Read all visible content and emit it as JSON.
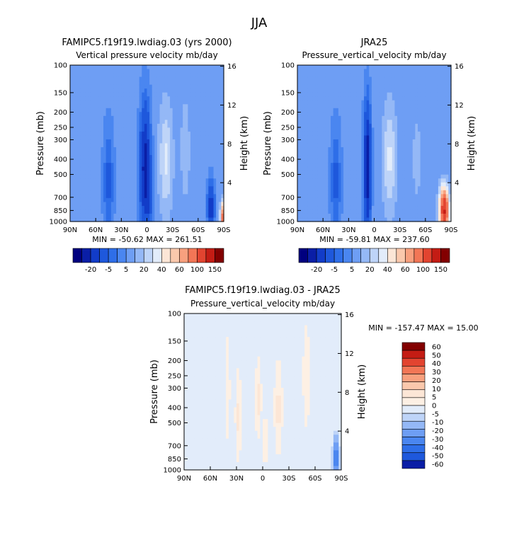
{
  "page_title": "JJA",
  "chart_data": [
    {
      "type": "heatmap",
      "id": "model",
      "title": "FAMIPC5.f19f19.lwdiag.03 (yrs 2000)",
      "subtitle": "Vertical pressure velocity mb/day",
      "xlabel": "",
      "ylabel": "Pressure (mb)",
      "ylabel_right": "Height (km)",
      "x_ticks": [
        "90N",
        "60N",
        "30N",
        "0",
        "30S",
        "60S",
        "90S"
      ],
      "y_ticks": [
        "100",
        "150",
        "200",
        "250",
        "300",
        "400",
        "500",
        "700",
        "850",
        "1000"
      ],
      "y_ticks_right": [
        "16",
        "12",
        "8",
        "4"
      ],
      "ylim": [
        1000,
        100
      ],
      "y_scale": "log",
      "stats": {
        "min_label": "MIN = -50.62",
        "max_label": "MAX = 261.51",
        "min": -50.62,
        "max": 261.51
      },
      "colorbar": {
        "orientation": "horizontal",
        "labels": [
          "-20",
          "-5",
          "5",
          "20",
          "40",
          "60",
          "100",
          "150"
        ],
        "colors": [
          "#00007f",
          "#0a1ea6",
          "#123cc8",
          "#1e58dc",
          "#2e6ee8",
          "#4a86f0",
          "#6e9ef4",
          "#94b8f6",
          "#bed4f8",
          "#e2ecfa",
          "#fce6d6",
          "#fac8ac",
          "#f8a07e",
          "#f27656",
          "#e24430",
          "#c41c14",
          "#820000"
        ]
      },
      "fields": {
        "base_value": -8,
        "features": [
          {
            "lat": 2,
            "p": 450,
            "wlat": 6,
            "wp": 0.9,
            "value": -38
          },
          {
            "lat": -3,
            "p": 700,
            "wlat": 4,
            "wp": 0.4,
            "value": -10
          },
          {
            "lat": -22,
            "p": 400,
            "wlat": 8,
            "wp": 0.8,
            "value": 14
          },
          {
            "lat": -45,
            "p": 350,
            "wlat": 5,
            "wp": 0.7,
            "value": 8
          },
          {
            "lat": 45,
            "p": 550,
            "wlat": 6,
            "wp": 0.8,
            "value": -14
          },
          {
            "lat": -75,
            "p": 800,
            "wlat": 4,
            "wp": 0.35,
            "value": -30
          },
          {
            "lat": -88,
            "p": 950,
            "wlat": 2,
            "wp": 0.2,
            "value": 60
          }
        ]
      }
    },
    {
      "type": "heatmap",
      "id": "obs",
      "title": "JRA25",
      "subtitle": "Pressure_vertical_velocity mb/day",
      "xlabel": "",
      "ylabel": "Pressure (mb)",
      "ylabel_right": "Height (km)",
      "x_ticks": [
        "90N",
        "60N",
        "30N",
        "0",
        "30S",
        "60S",
        "90S"
      ],
      "y_ticks": [
        "100",
        "150",
        "200",
        "250",
        "300",
        "400",
        "500",
        "700",
        "850",
        "1000"
      ],
      "y_ticks_right": [
        "16",
        "12",
        "8",
        "4"
      ],
      "ylim": [
        1000,
        100
      ],
      "y_scale": "log",
      "stats": {
        "min_label": "MIN = -59.81",
        "max_label": "MAX = 237.60",
        "min": -59.81,
        "max": 237.6
      },
      "colorbar": {
        "orientation": "horizontal",
        "labels": [
          "-20",
          "-5",
          "5",
          "20",
          "40",
          "60",
          "100",
          "150"
        ],
        "colors": [
          "#00007f",
          "#0a1ea6",
          "#123cc8",
          "#1e58dc",
          "#2e6ee8",
          "#4a86f0",
          "#6e9ef4",
          "#94b8f6",
          "#bed4f8",
          "#e2ecfa",
          "#fce6d6",
          "#fac8ac",
          "#f8a07e",
          "#f27656",
          "#e24430",
          "#c41c14",
          "#820000"
        ]
      },
      "fields": {
        "base_value": -8,
        "features": [
          {
            "lat": 8,
            "p": 450,
            "wlat": 4,
            "wp": 0.9,
            "value": -42
          },
          {
            "lat": -18,
            "p": 400,
            "wlat": 8,
            "wp": 0.8,
            "value": 14
          },
          {
            "lat": 45,
            "p": 550,
            "wlat": 6,
            "wp": 0.8,
            "value": -14
          },
          {
            "lat": -50,
            "p": 400,
            "wlat": 5,
            "wp": 0.6,
            "value": 6
          },
          {
            "lat": -82,
            "p": 850,
            "wlat": 5,
            "wp": 0.3,
            "value": 90
          }
        ]
      }
    },
    {
      "type": "heatmap",
      "id": "diff",
      "title": "FAMIPC5.f19f19.lwdiag.03 - JRA25",
      "subtitle": "Pressure_vertical_velocity mb/day",
      "xlabel": "",
      "ylabel": "Pressure (mb)",
      "ylabel_right": "Height (km)",
      "x_ticks": [
        "90N",
        "60N",
        "30N",
        "0",
        "30S",
        "60S",
        "90S"
      ],
      "y_ticks": [
        "100",
        "150",
        "200",
        "250",
        "300",
        "400",
        "500",
        "700",
        "850",
        "1000"
      ],
      "y_ticks_right": [
        "16",
        "12",
        "8",
        "4"
      ],
      "ylim": [
        1000,
        100
      ],
      "y_scale": "log",
      "stats": {
        "min_label": "MIN = -157.47",
        "max_label": "MAX =  15.00",
        "min": -157.47,
        "max": 15.0
      },
      "colorbar": {
        "orientation": "vertical",
        "labels": [
          "60",
          "50",
          "40",
          "30",
          "20",
          "10",
          "5",
          "0",
          "-5",
          "-10",
          "-20",
          "-30",
          "-40",
          "-50",
          "-60"
        ],
        "colors": [
          "#820000",
          "#c41c14",
          "#e24430",
          "#f27656",
          "#f8a07e",
          "#fac8ac",
          "#fce6d6",
          "#fdf0e4",
          "#e2ecfa",
          "#bed4f8",
          "#94b8f6",
          "#6e9ef4",
          "#4a86f0",
          "#2e6ee8",
          "#1e58dc",
          "#0a1ea6"
        ]
      },
      "fields": {
        "base_value": -2,
        "features": [
          {
            "lat": 28,
            "p": 450,
            "wlat": 3,
            "wp": 0.6,
            "value": 8
          },
          {
            "lat": 5,
            "p": 350,
            "wlat": 3,
            "wp": 0.5,
            "value": 9
          },
          {
            "lat": -18,
            "p": 400,
            "wlat": 4,
            "wp": 0.6,
            "value": 9
          },
          {
            "lat": -3,
            "p": 650,
            "wlat": 2,
            "wp": 0.4,
            "value": 7
          },
          {
            "lat": 40,
            "p": 300,
            "wlat": 4,
            "wp": 1.2,
            "value": 3
          },
          {
            "lat": -50,
            "p": 250,
            "wlat": 6,
            "wp": 1.2,
            "value": 3
          },
          {
            "lat": -84,
            "p": 850,
            "wlat": 3,
            "wp": 0.28,
            "value": -45
          }
        ]
      }
    }
  ]
}
